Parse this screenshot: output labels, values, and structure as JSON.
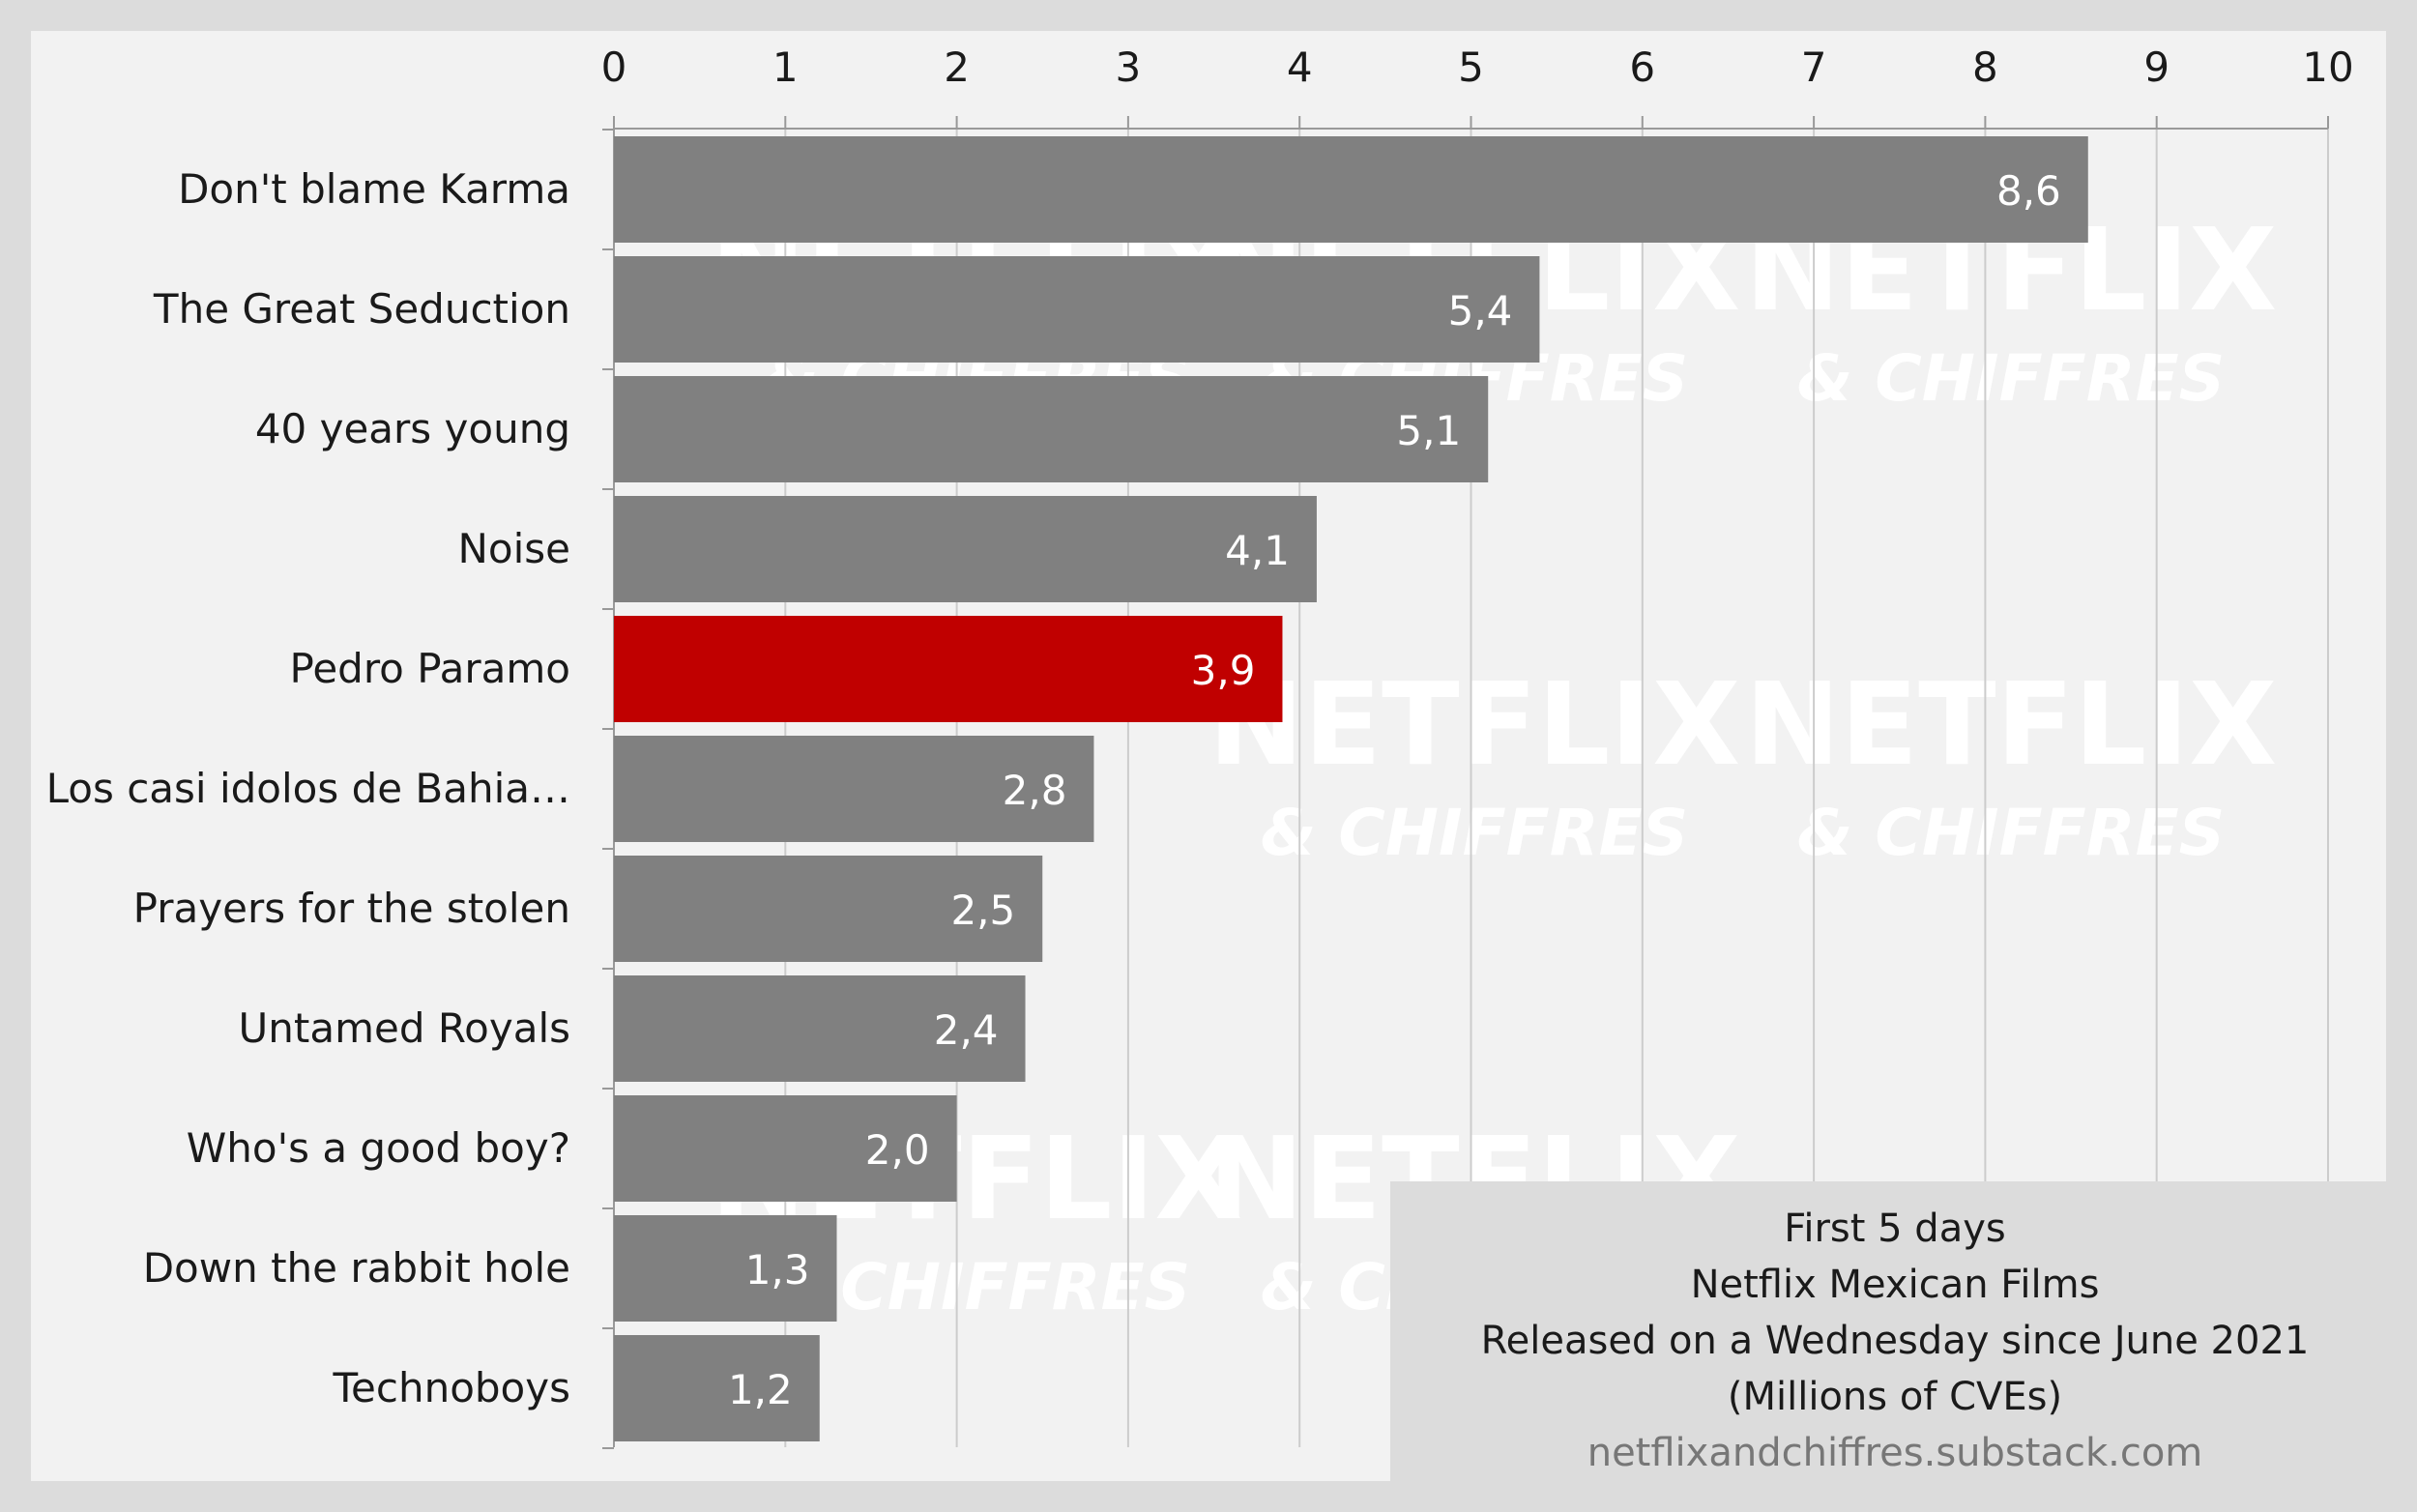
{
  "colors": {
    "frame": "#dcdcdc",
    "plot_background": "#f2f2f2",
    "bar": "#808080",
    "highlight_bar": "#c00000",
    "bar_label": "#ffffff",
    "text": "#1a1a1a",
    "grid": "#cccccc",
    "annotation_background": "#dcdcdc",
    "source_text": "#777777",
    "watermark": "#ffffff"
  },
  "watermark": {
    "line1": "NETFLIX",
    "line2": "& CHIFFRES"
  },
  "annotation": {
    "line1": "First 5 days",
    "line2": "Netflix Mexican Films",
    "line3": "Released on a Wednesday since June 2021",
    "line4": "(Millions of CVEs)",
    "source": "netflixandchiffres.substack.com"
  },
  "chart_data": {
    "type": "bar",
    "orientation": "horizontal",
    "categories": [
      "Don't blame Karma",
      "The Great Seduction",
      "40 years young",
      "Noise",
      "Pedro Paramo",
      "Los casi idolos de Bahia…",
      "Prayers for the stolen",
      "Untamed Royals",
      "Who's a good boy?",
      "Down the rabbit hole",
      "Technoboys"
    ],
    "values": [
      8.6,
      5.4,
      5.1,
      4.1,
      3.9,
      2.8,
      2.5,
      2.4,
      2.0,
      1.3,
      1.2
    ],
    "value_labels": [
      "8,6",
      "5,4",
      "5,1",
      "4,1",
      "3,9",
      "2,8",
      "2,5",
      "2,4",
      "2,0",
      "1,3",
      "1,2"
    ],
    "highlight": "Pedro Paramo",
    "xlim": [
      0,
      10
    ],
    "x_ticks": [
      "0",
      "1",
      "2",
      "3",
      "4",
      "5",
      "6",
      "7",
      "8",
      "9",
      "10"
    ],
    "x_axis_position": "top",
    "grid": true,
    "title": "",
    "xlabel": "",
    "ylabel": ""
  }
}
